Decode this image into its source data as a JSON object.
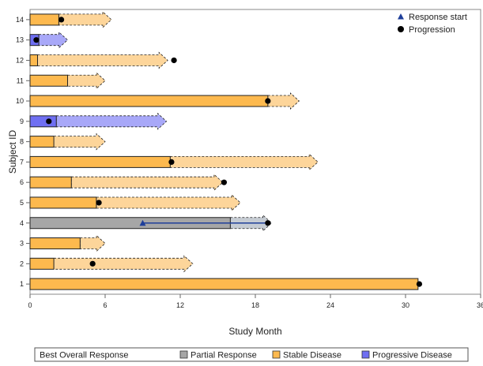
{
  "chart_data": {
    "type": "swimmer",
    "xlabel": "Study Month",
    "ylabel": "Subject ID",
    "xlim": [
      0,
      36
    ],
    "x_ticks": [
      0,
      6,
      12,
      18,
      24,
      30,
      36
    ],
    "legend_title": "Best Overall Response",
    "response_categories": [
      {
        "name": "Partial Response",
        "color": "#a6a6a6",
        "light": "#c6ccd3"
      },
      {
        "name": "Stable Disease",
        "color": "#fdb94e",
        "light": "#fdd59a"
      },
      {
        "name": "Progressive Disease",
        "color": "#6f6ff2",
        "light": "#a8a8f8"
      }
    ],
    "markers": [
      {
        "name": "Response start",
        "shape": "triangle",
        "color": "#1f3f9a"
      },
      {
        "name": "Progression",
        "shape": "circle",
        "color": "#000000"
      }
    ],
    "subjects": [
      {
        "id": "1",
        "response": "Stable Disease",
        "solid_end": 31.0,
        "ongoing_end": null,
        "progression": 31.1,
        "response_start": null
      },
      {
        "id": "2",
        "response": "Stable Disease",
        "solid_end": 1.9,
        "ongoing_end": 13.0,
        "progression": 5.0,
        "response_start": null
      },
      {
        "id": "3",
        "response": "Stable Disease",
        "solid_end": 4.0,
        "ongoing_end": 6.0,
        "progression": null,
        "response_start": null
      },
      {
        "id": "4",
        "response": "Partial Response",
        "solid_end": 16.0,
        "ongoing_end": 19.3,
        "progression": 19.0,
        "response_start": 9.0
      },
      {
        "id": "5",
        "response": "Stable Disease",
        "solid_end": 5.3,
        "ongoing_end": 16.8,
        "progression": 5.5,
        "response_start": null
      },
      {
        "id": "6",
        "response": "Stable Disease",
        "solid_end": 3.3,
        "ongoing_end": 15.4,
        "progression": 15.5,
        "response_start": null
      },
      {
        "id": "7",
        "response": "Stable Disease",
        "solid_end": 11.2,
        "ongoing_end": 23.0,
        "progression": 11.3,
        "response_start": null
      },
      {
        "id": "8",
        "response": "Stable Disease",
        "solid_end": 1.9,
        "ongoing_end": 6.0,
        "progression": null,
        "response_start": null
      },
      {
        "id": "9",
        "response": "Progressive Disease",
        "solid_end": 2.1,
        "ongoing_end": 10.9,
        "progression": 1.5,
        "response_start": null
      },
      {
        "id": "10",
        "response": "Stable Disease",
        "solid_end": 19.0,
        "ongoing_end": 21.5,
        "progression": 19.0,
        "response_start": null
      },
      {
        "id": "11",
        "response": "Stable Disease",
        "solid_end": 3.0,
        "ongoing_end": 6.0,
        "progression": null,
        "response_start": null
      },
      {
        "id": "12",
        "response": "Stable Disease",
        "solid_end": 0.6,
        "ongoing_end": 11.0,
        "progression": 11.5,
        "response_start": null
      },
      {
        "id": "13",
        "response": "Progressive Disease",
        "solid_end": 0.7,
        "ongoing_end": 3.0,
        "progression": 0.5,
        "response_start": null
      },
      {
        "id": "14",
        "response": "Stable Disease",
        "solid_end": 2.3,
        "ongoing_end": 6.5,
        "progression": 2.5,
        "response_start": null
      }
    ]
  }
}
